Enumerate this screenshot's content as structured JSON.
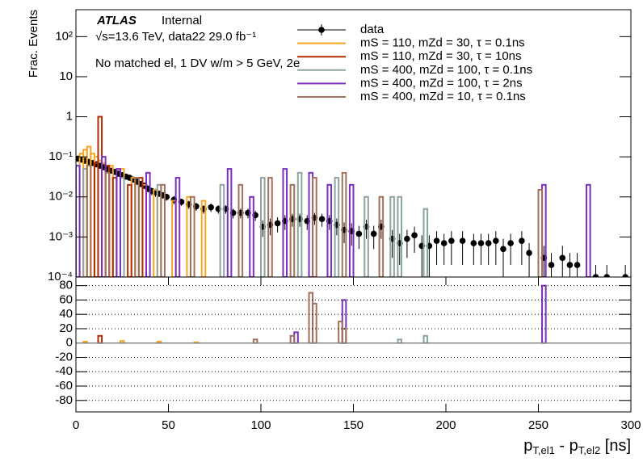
{
  "chart_data": [
    {
      "type": "bar",
      "log_y": true,
      "title": "ATLAS",
      "subtitle": "Internal",
      "annotations": [
        "√s=13.6 TeV, data22 29.0 fb⁻¹",
        "No matched el, 1 DV w/m > 5 GeV, 2e"
      ],
      "y_label": "Frac. Events",
      "xlim": [
        0,
        300
      ],
      "ylim": [
        0.0001,
        470
      ],
      "yticks": [
        {
          "value": 0.0001,
          "label": "10⁻⁴"
        },
        {
          "value": 0.001,
          "label": "10⁻³"
        },
        {
          "value": 0.01,
          "label": "10⁻²"
        },
        {
          "value": 0.1,
          "label": "10⁻¹"
        },
        1,
        10,
        {
          "value": 100,
          "label": "10²"
        }
      ],
      "legend": "top-right",
      "series": [
        {
          "name": "data",
          "color": "#000000",
          "style": "points",
          "x": [
            1,
            3,
            5,
            7,
            9,
            11,
            13,
            15,
            17,
            19,
            21,
            23,
            25,
            27,
            29,
            31,
            33,
            35,
            37,
            39,
            41,
            43,
            45,
            47,
            49,
            53,
            57,
            61,
            65,
            69,
            73,
            77,
            81,
            85,
            89,
            93,
            97,
            101,
            105,
            109,
            113,
            117,
            121,
            125,
            129,
            133,
            137,
            141,
            145,
            149,
            153,
            157,
            161,
            165,
            171,
            175,
            179,
            183,
            187,
            191,
            195,
            199,
            203,
            209,
            215,
            219,
            223,
            227,
            231,
            235,
            241,
            245,
            253,
            257,
            263,
            267,
            271,
            281,
            287,
            297
          ],
          "values": [
            0.09,
            0.085,
            0.08,
            0.075,
            0.07,
            0.065,
            0.06,
            0.055,
            0.05,
            0.045,
            0.042,
            0.038,
            0.035,
            0.032,
            0.03,
            0.027,
            0.024,
            0.021,
            0.019,
            0.016,
            0.014,
            0.013,
            0.012,
            0.011,
            0.01,
            0.0085,
            0.0075,
            0.0065,
            0.0058,
            0.005,
            0.0055,
            0.005,
            0.005,
            0.004,
            0.004,
            0.004,
            0.0035,
            0.0018,
            0.002,
            0.0022,
            0.0025,
            0.0028,
            0.0028,
            0.0025,
            0.003,
            0.0028,
            0.0025,
            0.002,
            0.0015,
            0.0014,
            0.0012,
            0.0018,
            0.0012,
            0.0018,
            0.0009,
            0.0007,
            0.0009,
            0.0011,
            0.0006,
            0.0006,
            0.0008,
            0.0007,
            0.0008,
            0.0008,
            0.0007,
            0.0007,
            0.0007,
            0.0008,
            0.0005,
            0.0007,
            0.0008,
            0.0004,
            0.0003,
            0.0002,
            0.0003,
            0.0002,
            0.0002,
            0.0001,
            0.0001,
            0.0001
          ],
          "errors": [
            0.01,
            0.01,
            0.009,
            0.009,
            0.008,
            0.008,
            0.007,
            0.007,
            0.006,
            0.006,
            0.005,
            0.005,
            0.005,
            0.004,
            0.004,
            0.004,
            0.003,
            0.003,
            0.003,
            0.003,
            0.003,
            0.003,
            0.002,
            0.002,
            0.002,
            0.002,
            0.0015,
            0.0015,
            0.0013,
            0.0012,
            0.0013,
            0.0012,
            0.0012,
            0.0011,
            0.0011,
            0.0011,
            0.001,
            0.0008,
            0.0009,
            0.0009,
            0.001,
            0.001,
            0.001,
            0.001,
            0.001,
            0.001,
            0.001,
            0.0009,
            0.0008,
            0.0008,
            0.0007,
            0.0009,
            0.0007,
            0.0009,
            0.0006,
            0.0005,
            0.0006,
            0.0007,
            0.0005,
            0.0005,
            0.0006,
            0.0005,
            0.0006,
            0.0006,
            0.0005,
            0.0005,
            0.0005,
            0.0006,
            0.0004,
            0.0005,
            0.0006,
            0.0003,
            0.0003,
            0.0002,
            0.0003,
            0.0002,
            0.0002,
            0.0001,
            0.0001,
            0.0001
          ]
        },
        {
          "name": "mS = 110, mZd = 30, τ = 0.1ns",
          "color": "#f5a623",
          "x": [
            3,
            5,
            7,
            9,
            11,
            13,
            15,
            19,
            25,
            31,
            37,
            43,
            53,
            61,
            69
          ],
          "values": [
            0.12,
            0.15,
            0.18,
            0.12,
            0.1,
            0.08,
            0.07,
            0.06,
            0.05,
            0.03,
            0.02,
            0.015,
            0.008,
            0.01,
            0.008
          ]
        },
        {
          "name": "mS = 110, mZd = 30, τ = 10ns",
          "color": "#b52a00",
          "x": [
            11,
            13,
            17,
            21,
            29,
            35
          ],
          "values": [
            0.07,
            1.0,
            0.06,
            0.03,
            0.02,
            0.03
          ]
        },
        {
          "name": "mS = 400, mZd = 100, τ = 0.1ns",
          "color": "#8fa3a0",
          "x": [
            5,
            25,
            45,
            79,
            101,
            121,
            141,
            157,
            171,
            175,
            189
          ],
          "values": [
            0.05,
            0.03,
            0.02,
            0.02,
            0.03,
            0.04,
            0.03,
            0.01,
            0.01,
            0.01,
            0.005
          ]
        },
        {
          "name": "mS = 400, mZd = 100, τ = 2ns",
          "color": "#7b2fbe",
          "x": [
            1,
            15,
            23,
            39,
            55,
            83,
            95,
            113,
            127,
            137,
            149,
            253,
            277
          ],
          "values": [
            0.06,
            0.1,
            0.05,
            0.04,
            0.03,
            0.05,
            0.01,
            0.05,
            0.04,
            0.02,
            0.02,
            0.02,
            0.02
          ]
        },
        {
          "name": "mS = 400, mZd = 10, τ = 0.1ns",
          "color": "#a0705a",
          "x": [
            7,
            17,
            33,
            47,
            63,
            89,
            105,
            117,
            129,
            145,
            165,
            251
          ],
          "values": [
            0.06,
            0.04,
            0.03,
            0.02,
            0.01,
            0.02,
            0.03,
            0.02,
            0.03,
            0.04,
            0.01,
            0.015
          ]
        }
      ]
    },
    {
      "type": "bar",
      "x_label": [
        "p",
        "T,el1",
        " - p",
        "T,el2",
        " [ns]"
      ],
      "xlim": [
        0,
        300
      ],
      "xticks": [
        0,
        50,
        100,
        150,
        200,
        250,
        300
      ],
      "ylim": [
        -96,
        92
      ],
      "yticks": [
        -80,
        -60,
        -40,
        -20,
        0,
        20,
        40,
        60,
        80
      ],
      "grid": true,
      "series": [
        {
          "color": "#b52a00",
          "x": [
            13
          ],
          "values": [
            10
          ]
        },
        {
          "color": "#8fa3a0",
          "x": [
            175,
            189
          ],
          "values": [
            5,
            10
          ]
        },
        {
          "color": "#7b2fbe",
          "x": [
            119,
            145,
            253
          ],
          "values": [
            15,
            60,
            80
          ]
        },
        {
          "color": "#a0705a",
          "x": [
            97,
            117,
            127,
            129,
            143,
            145
          ],
          "values": [
            5,
            10,
            70,
            55,
            30,
            20
          ]
        },
        {
          "color": "#f5a623",
          "x": [
            5,
            25,
            45,
            65
          ],
          "values": [
            2,
            3,
            2,
            1
          ]
        }
      ]
    }
  ]
}
